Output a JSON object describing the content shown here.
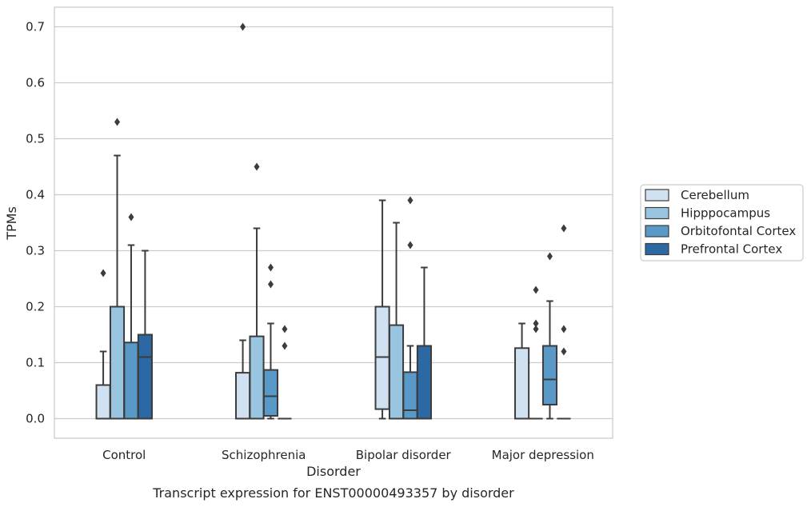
{
  "chart_data": {
    "type": "box",
    "title": "Transcript expression for ENST00000493357 by disorder",
    "xlabel": "Disorder",
    "ylabel": "TPMs",
    "ylim": [
      -0.035,
      0.735
    ],
    "yticks": [
      0.0,
      0.1,
      0.2,
      0.3,
      0.4,
      0.5,
      0.6,
      0.7
    ],
    "ytick_labels": [
      "0.0",
      "0.1",
      "0.2",
      "0.3",
      "0.4",
      "0.5",
      "0.6",
      "0.7"
    ],
    "grid": true,
    "legend_position": "right-center",
    "categories": [
      "Control",
      "Schizophrenia",
      "Bipolar disorder",
      "Major depression"
    ],
    "series": [
      {
        "name": "Cerebellum",
        "color": "#d0e1f2",
        "boxes": [
          {
            "whislo": 0.0,
            "q1": 0.0,
            "med": 0.0,
            "q3": 0.06,
            "whishi": 0.12,
            "fliers": [
              0.26
            ]
          },
          {
            "whislo": 0.0,
            "q1": 0.0,
            "med": 0.0,
            "q3": 0.082,
            "whishi": 0.14,
            "fliers": [
              0.7
            ]
          },
          {
            "whislo": 0.0,
            "q1": 0.017,
            "med": 0.11,
            "q3": 0.2,
            "whishi": 0.39,
            "fliers": []
          },
          {
            "whislo": 0.0,
            "q1": 0.0,
            "med": 0.0,
            "q3": 0.126,
            "whishi": 0.17,
            "fliers": []
          }
        ]
      },
      {
        "name": "Hipppocampus",
        "color": "#9ac5e0",
        "boxes": [
          {
            "whislo": 0.0,
            "q1": 0.0,
            "med": 0.0,
            "q3": 0.2,
            "whishi": 0.47,
            "fliers": [
              0.53
            ]
          },
          {
            "whislo": 0.0,
            "q1": 0.0,
            "med": 0.0,
            "q3": 0.147,
            "whishi": 0.34,
            "fliers": [
              0.45
            ]
          },
          {
            "whislo": 0.0,
            "q1": 0.0,
            "med": 0.0,
            "q3": 0.167,
            "whishi": 0.35,
            "fliers": []
          },
          {
            "whislo": 0.0,
            "q1": 0.0,
            "med": 0.0,
            "q3": 0.0,
            "whishi": 0.0,
            "fliers": [
              0.16,
              0.17,
              0.23
            ]
          }
        ]
      },
      {
        "name": "Orbitofontal Cortex",
        "color": "#5899c8",
        "boxes": [
          {
            "whislo": 0.0,
            "q1": 0.0,
            "med": 0.0,
            "q3": 0.136,
            "whishi": 0.31,
            "fliers": [
              0.36
            ]
          },
          {
            "whislo": 0.0,
            "q1": 0.005,
            "med": 0.04,
            "q3": 0.087,
            "whishi": 0.17,
            "fliers": [
              0.24,
              0.27
            ]
          },
          {
            "whislo": 0.0,
            "q1": 0.0,
            "med": 0.015,
            "q3": 0.083,
            "whishi": 0.13,
            "fliers": [
              0.31,
              0.39
            ]
          },
          {
            "whislo": 0.0,
            "q1": 0.025,
            "med": 0.07,
            "q3": 0.13,
            "whishi": 0.21,
            "fliers": [
              0.29
            ]
          }
        ]
      },
      {
        "name": "Prefrontal Cortex",
        "color": "#2b68a4",
        "boxes": [
          {
            "whislo": 0.0,
            "q1": 0.0,
            "med": 0.11,
            "q3": 0.15,
            "whishi": 0.3,
            "fliers": []
          },
          {
            "whislo": 0.0,
            "q1": 0.0,
            "med": 0.0,
            "q3": 0.0,
            "whishi": 0.0,
            "fliers": [
              0.13,
              0.16
            ]
          },
          {
            "whislo": 0.0,
            "q1": 0.0,
            "med": 0.0,
            "q3": 0.13,
            "whishi": 0.27,
            "fliers": []
          },
          {
            "whislo": 0.0,
            "q1": 0.0,
            "med": 0.0,
            "q3": 0.0,
            "whishi": 0.0,
            "fliers": [
              0.12,
              0.16,
              0.34
            ]
          }
        ]
      }
    ]
  }
}
